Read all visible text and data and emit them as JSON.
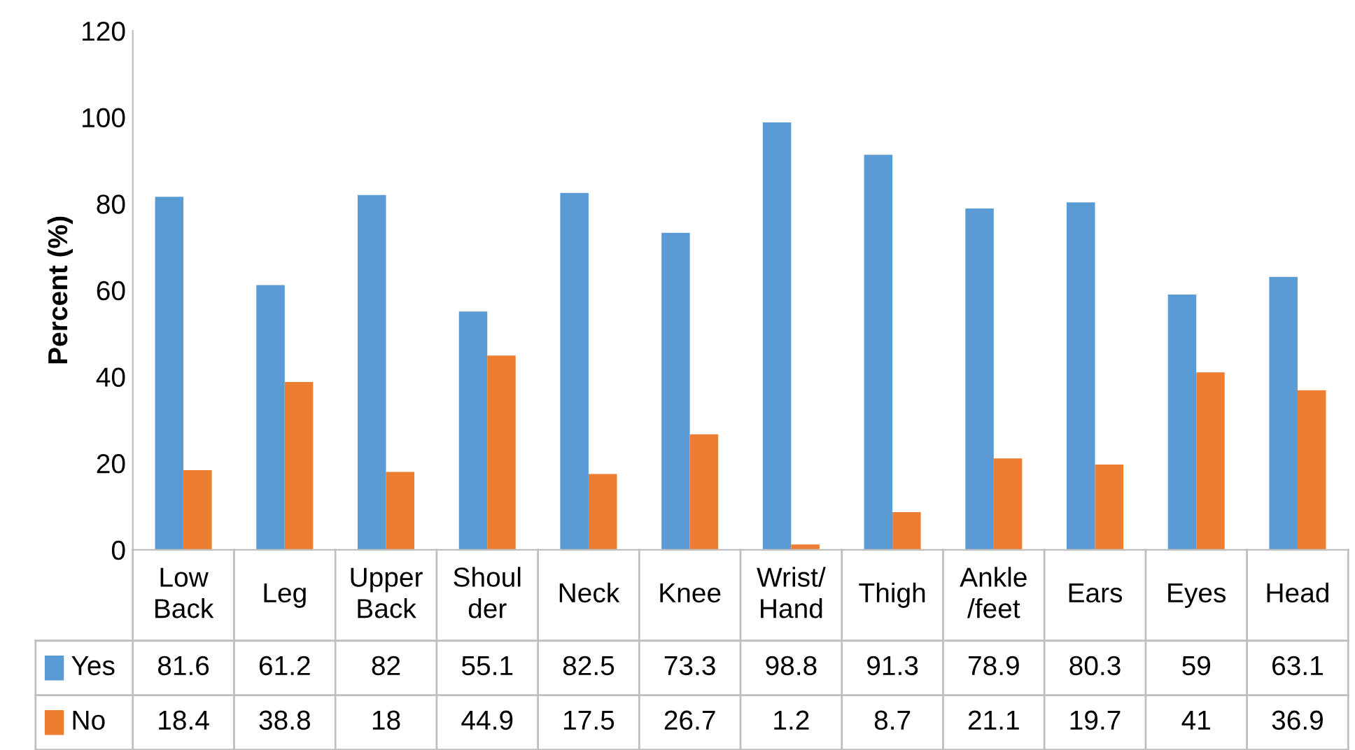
{
  "chart_data": {
    "type": "bar",
    "ylabel": "Percent (%)",
    "categories": [
      "Low\nBack",
      "Leg",
      "Upper\nBack",
      "Shoul\nder",
      "Neck",
      "Knee",
      "Wrist/\nHand",
      "Thigh",
      "Ankle\n/feet",
      "Ears",
      "Eyes",
      "Head"
    ],
    "series": [
      {
        "name": "Yes",
        "color": "#5b9bd5",
        "values": [
          81.6,
          61.2,
          82,
          55.1,
          82.5,
          73.3,
          98.8,
          91.3,
          78.9,
          80.3,
          59,
          63.1
        ]
      },
      {
        "name": "No",
        "color": "#ed7d31",
        "values": [
          18.4,
          38.8,
          18,
          44.9,
          17.5,
          26.7,
          1.2,
          8.7,
          21.1,
          19.7,
          41,
          36.9
        ]
      }
    ],
    "ylim": [
      0,
      120
    ],
    "yticks": [
      0,
      20,
      40,
      60,
      80,
      100,
      120
    ],
    "grid": false,
    "legend": "bottom",
    "data_labels": true
  }
}
